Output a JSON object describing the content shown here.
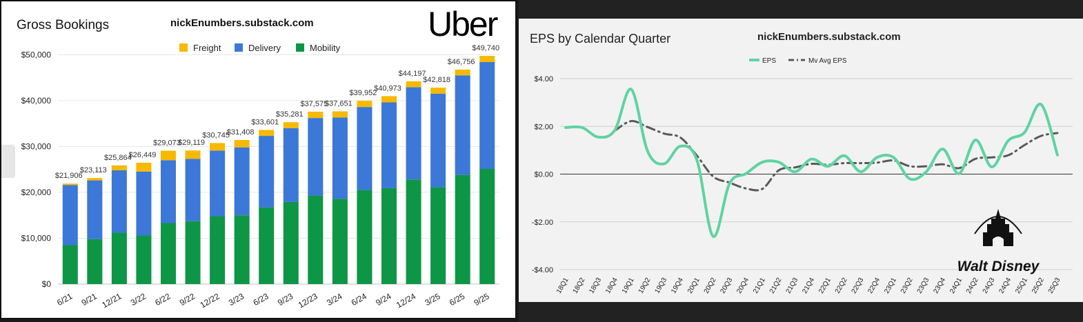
{
  "chart_data": [
    {
      "type": "bar",
      "stacked": true,
      "title": "Gross Bookings",
      "watermark": "nickEnumbers.substack.com",
      "logo_text": "Uber",
      "legend_placement": "top-center",
      "categories": [
        "6/21",
        "9/21",
        "12/21",
        "3/22",
        "6/22",
        "9/22",
        "12/22",
        "3/23",
        "6/23",
        "9/23",
        "12/23",
        "3/24",
        "6/24",
        "9/24",
        "12/24",
        "3/25",
        "6/25",
        "9/25"
      ],
      "series": [
        {
          "name": "Mobility",
          "color": "#0e9647",
          "values": [
            8500,
            9800,
            11200,
            10600,
            13300,
            13700,
            14800,
            15000,
            16700,
            17900,
            19300,
            18600,
            20500,
            20900,
            22800,
            21100,
            23800,
            25100
          ]
        },
        {
          "name": "Delivery",
          "color": "#3b78d8",
          "values": [
            13100,
            12800,
            13600,
            13900,
            13700,
            13600,
            14300,
            14800,
            15600,
            16100,
            16900,
            17700,
            18100,
            18700,
            20100,
            20400,
            21700,
            23300
          ]
        },
        {
          "name": "Freight",
          "color": "#f6b900",
          "values": [
            300,
            513,
            1064,
            1949,
            2073,
            1819,
            1645,
            1608,
            1301,
            1281,
            1375,
            1351,
            1352,
            1373,
            1297,
            1318,
            1256,
            1340
          ]
        }
      ],
      "totals": [
        21906,
        23113,
        25864,
        26449,
        29073,
        29119,
        30745,
        31408,
        33601,
        35281,
        37575,
        37651,
        39952,
        40973,
        44197,
        42818,
        46756,
        49740
      ],
      "total_labels": [
        "$21,906",
        "$23,113",
        "$25,864",
        "$26,449",
        "$29,073",
        "$29,119",
        "$30,745",
        "$31,408",
        "$33,601",
        "$35,281",
        "$37,575",
        "$37,651",
        "$39,952",
        "$40,973",
        "$44,197",
        "$42,818",
        "$46,756",
        "$49,740"
      ],
      "legend": [
        "Freight",
        "Delivery",
        "Mobility"
      ],
      "y_ticks": [
        0,
        10000,
        20000,
        30000,
        40000,
        50000
      ],
      "y_tick_labels": [
        "$0",
        "$10,000",
        "$20,000",
        "$30,000",
        "$40,000",
        "$50,000"
      ],
      "ylim": [
        0,
        52000
      ],
      "grid": true
    },
    {
      "type": "line",
      "title": "EPS by Calendar Quarter",
      "watermark": "nickEnumbers.substack.com",
      "logo_text": "Walt Disney",
      "legend_placement": "top-center",
      "categories": [
        "18Q1",
        "18Q2",
        "18Q3",
        "18Q4",
        "19Q1",
        "19Q2",
        "19Q3",
        "19Q4",
        "20Q1",
        "20Q2",
        "20Q3",
        "20Q4",
        "21Q1",
        "21Q2",
        "21Q3",
        "21Q4",
        "22Q1",
        "22Q2",
        "22Q3",
        "22Q4",
        "23Q1",
        "23Q2",
        "23Q3",
        "23Q4",
        "24Q1",
        "24Q2",
        "24Q3",
        "24Q4",
        "25Q1",
        "25Q2",
        "25Q3"
      ],
      "series": [
        {
          "name": "EPS",
          "color": "#5ed4a0",
          "style": "solid",
          "values": [
            1.95,
            1.95,
            1.55,
            1.84,
            3.55,
            0.96,
            0.43,
            1.17,
            0.6,
            -2.61,
            -0.39,
            0.02,
            0.5,
            0.5,
            0.1,
            0.63,
            0.33,
            0.77,
            0.1,
            0.7,
            0.7,
            -0.2,
            0.1,
            1.05,
            0.02,
            1.43,
            0.3,
            1.4,
            1.75,
            2.92,
            0.8
          ]
        },
        {
          "name": "Mv Avg EPS",
          "color": "#595959",
          "style": "dash-dot",
          "values": [
            null,
            null,
            null,
            1.82,
            2.22,
            1.97,
            1.7,
            1.53,
            0.78,
            -0.1,
            -0.36,
            -0.6,
            -0.62,
            0.16,
            0.28,
            0.43,
            0.39,
            0.46,
            0.46,
            0.48,
            0.57,
            0.33,
            0.33,
            0.41,
            0.25,
            0.64,
            0.7,
            0.79,
            1.22,
            1.6,
            1.72
          ]
        }
      ],
      "legend": [
        "EPS",
        "Mv Avg EPS"
      ],
      "y_ticks": [
        -4,
        -2,
        0,
        2,
        4
      ],
      "y_tick_labels": [
        "-$4.00",
        "-$2.00",
        "$0.00",
        "$2.00",
        "$4.00"
      ],
      "ylim": [
        -4,
        4
      ],
      "grid": true
    }
  ]
}
